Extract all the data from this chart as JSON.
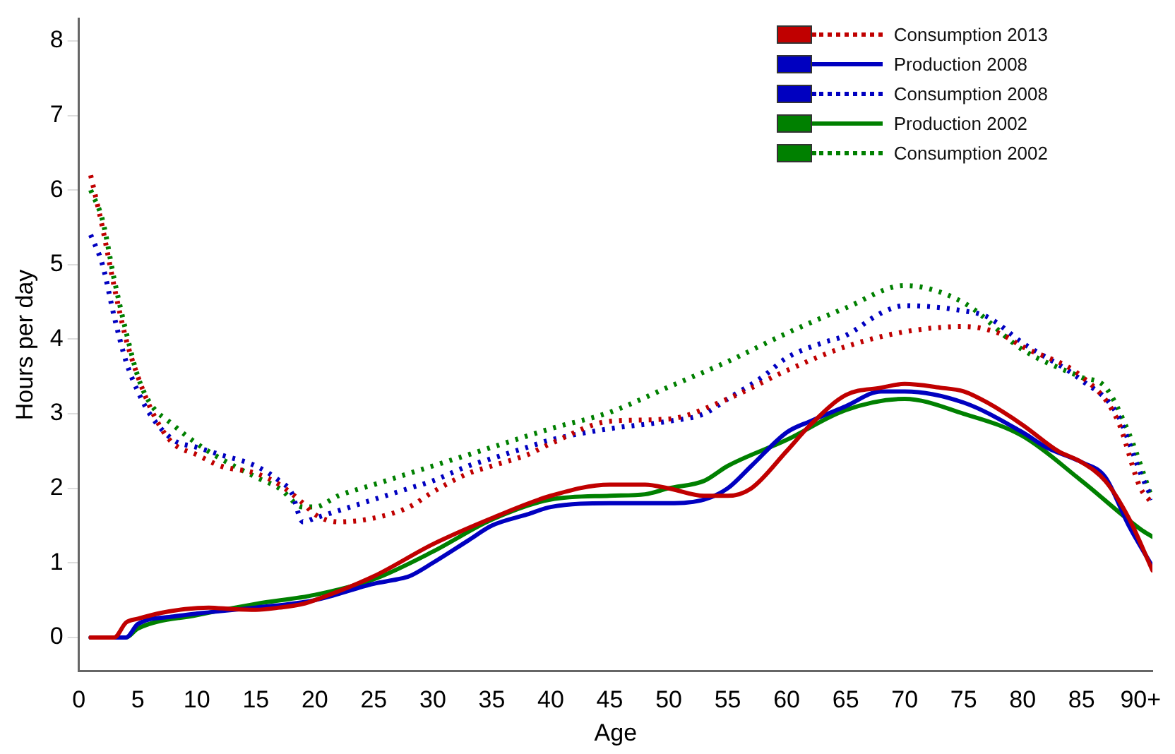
{
  "chart_data": {
    "type": "line",
    "xlabel": "Age",
    "ylabel": "Hours per day",
    "xlim": [
      0,
      91
    ],
    "ylim": [
      -0.45,
      8.3
    ],
    "xticks": [
      0,
      5,
      10,
      15,
      20,
      25,
      30,
      35,
      40,
      45,
      50,
      55,
      60,
      65,
      70,
      75,
      80,
      85,
      {
        "value": 90,
        "label": "90+"
      }
    ],
    "yticks": [
      0,
      1,
      2,
      3,
      4,
      5,
      6,
      7,
      8
    ],
    "grid": false,
    "legend": "top right",
    "series": [
      {
        "color": "#c00000",
        "line_style": "solid",
        "x": [
          1,
          3,
          4,
          5,
          7,
          9,
          11,
          13,
          15,
          17,
          19,
          20,
          25,
          30,
          35,
          40,
          45,
          48,
          50,
          53,
          55,
          57,
          60,
          62,
          65,
          68,
          70,
          73,
          75,
          77,
          80,
          83,
          85,
          87,
          89,
          91
        ],
        "values": [
          0,
          0,
          0.2,
          0.25,
          0.33,
          0.38,
          0.4,
          0.38,
          0.37,
          0.4,
          0.45,
          0.5,
          0.82,
          1.25,
          1.6,
          1.9,
          2.05,
          2.05,
          2.0,
          1.9,
          1.9,
          2.0,
          2.5,
          2.85,
          3.25,
          3.35,
          3.4,
          3.35,
          3.3,
          3.15,
          2.85,
          2.5,
          2.35,
          2.1,
          1.6,
          0.9
        ]
      },
      {
        "name": "Consumption 2013",
        "color": "#c00000",
        "line_style": "dotted",
        "x": [
          1,
          2,
          3,
          4,
          5,
          6,
          7,
          8,
          10,
          12,
          15,
          17,
          19,
          20,
          22,
          25,
          28,
          30,
          33,
          35,
          38,
          40,
          45,
          50,
          55,
          60,
          65,
          70,
          75,
          78,
          80,
          85,
          88,
          90,
          91
        ],
        "values": [
          6.2,
          5.5,
          4.7,
          4.0,
          3.5,
          3.1,
          2.8,
          2.6,
          2.45,
          2.3,
          2.2,
          2.05,
          1.8,
          1.65,
          1.55,
          1.6,
          1.75,
          1.95,
          2.2,
          2.3,
          2.45,
          2.6,
          2.9,
          2.93,
          3.2,
          3.58,
          3.9,
          4.1,
          4.17,
          4.08,
          3.9,
          3.5,
          2.93,
          2.0,
          1.8
        ]
      },
      {
        "name": "Production 2008",
        "color": "#0000c0",
        "line_style": "solid",
        "x": [
          1,
          4,
          5,
          8,
          10,
          15,
          20,
          25,
          27,
          28,
          30,
          33,
          35,
          38,
          40,
          45,
          50,
          53,
          55,
          57,
          60,
          62,
          65,
          68,
          70,
          75,
          80,
          82,
          85,
          87,
          89,
          91
        ],
        "values": [
          0,
          0,
          0.18,
          0.28,
          0.32,
          0.4,
          0.5,
          0.72,
          0.78,
          0.82,
          1.0,
          1.3,
          1.5,
          1.65,
          1.75,
          1.8,
          1.8,
          1.85,
          2.0,
          2.3,
          2.75,
          2.9,
          3.1,
          3.3,
          3.3,
          3.15,
          2.75,
          2.55,
          2.35,
          2.15,
          1.5,
          0.95
        ]
      },
      {
        "name": "Consumption 2008",
        "color": "#0000c0",
        "line_style": "dotted",
        "x": [
          1,
          2,
          3,
          4,
          5,
          6,
          8,
          10,
          12,
          15,
          17,
          18,
          19,
          20,
          22,
          25,
          28,
          30,
          33,
          35,
          38,
          40,
          45,
          50,
          53,
          55,
          58,
          60,
          63,
          65,
          68,
          70,
          75,
          77,
          80,
          85,
          88,
          90,
          91
        ],
        "values": [
          5.4,
          5.0,
          4.3,
          3.7,
          3.3,
          3.0,
          2.65,
          2.55,
          2.45,
          2.3,
          2.1,
          1.95,
          1.55,
          1.6,
          1.7,
          1.85,
          2.0,
          2.1,
          2.3,
          2.4,
          2.55,
          2.65,
          2.8,
          2.9,
          3.0,
          3.2,
          3.5,
          3.75,
          3.95,
          4.05,
          4.35,
          4.45,
          4.38,
          4.3,
          3.95,
          3.45,
          3.0,
          2.2,
          1.85
        ]
      },
      {
        "name": "Production 2002",
        "color": "#008000",
        "line_style": "solid",
        "x": [
          1,
          4,
          5,
          10,
          15,
          20,
          25,
          30,
          35,
          40,
          45,
          48,
          50,
          53,
          55,
          60,
          65,
          70,
          75,
          80,
          85,
          90,
          91
        ],
        "values": [
          0,
          0,
          0.12,
          0.3,
          0.45,
          0.57,
          0.78,
          1.15,
          1.58,
          1.85,
          1.9,
          1.92,
          2.0,
          2.1,
          2.3,
          2.65,
          3.05,
          3.2,
          3.0,
          2.7,
          2.1,
          1.45,
          1.35
        ]
      },
      {
        "name": "Consumption 2002",
        "color": "#008000",
        "line_style": "dotted",
        "x": [
          1,
          2,
          3,
          4,
          5,
          6,
          8,
          10,
          12,
          15,
          17,
          19,
          20,
          22,
          25,
          30,
          35,
          40,
          45,
          50,
          55,
          60,
          65,
          70,
          75,
          80,
          85,
          87,
          89,
          91
        ],
        "values": [
          6.0,
          5.6,
          4.8,
          4.1,
          3.5,
          3.15,
          2.85,
          2.6,
          2.4,
          2.15,
          2.0,
          1.75,
          1.75,
          1.9,
          2.05,
          2.3,
          2.55,
          2.8,
          3.02,
          3.36,
          3.7,
          4.08,
          4.42,
          4.72,
          4.49,
          3.86,
          3.49,
          3.36,
          2.74,
          1.85
        ]
      }
    ]
  }
}
